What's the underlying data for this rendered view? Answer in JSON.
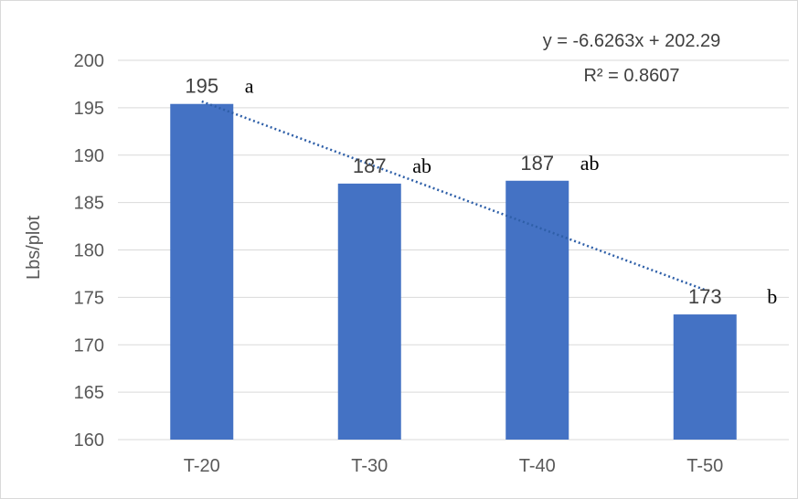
{
  "chart_data": {
    "type": "bar",
    "categories": [
      "T-20",
      "T-30",
      "T-40",
      "T-50"
    ],
    "values": [
      195.4,
      187.0,
      187.3,
      173.2
    ],
    "data_labels": [
      "195",
      "187",
      "187",
      "173"
    ],
    "significance_letters": [
      "a",
      "ab",
      "ab",
      "b"
    ],
    "ylabel": "Lbs/plot",
    "xlabel": "",
    "title": "",
    "ylim": [
      160,
      200
    ],
    "yticks": [
      160,
      165,
      170,
      175,
      180,
      185,
      190,
      195,
      200
    ],
    "bar_color": "#4472c4",
    "grid": true,
    "grid_color": "#d9d9d9",
    "trendline": {
      "type": "linear",
      "slope": -6.6263,
      "intercept": 202.29,
      "color": "#2e5fa8",
      "style": "dotted",
      "equation": "y = -6.6263x + 202.29",
      "r_squared": "R² = 0.8607"
    }
  }
}
